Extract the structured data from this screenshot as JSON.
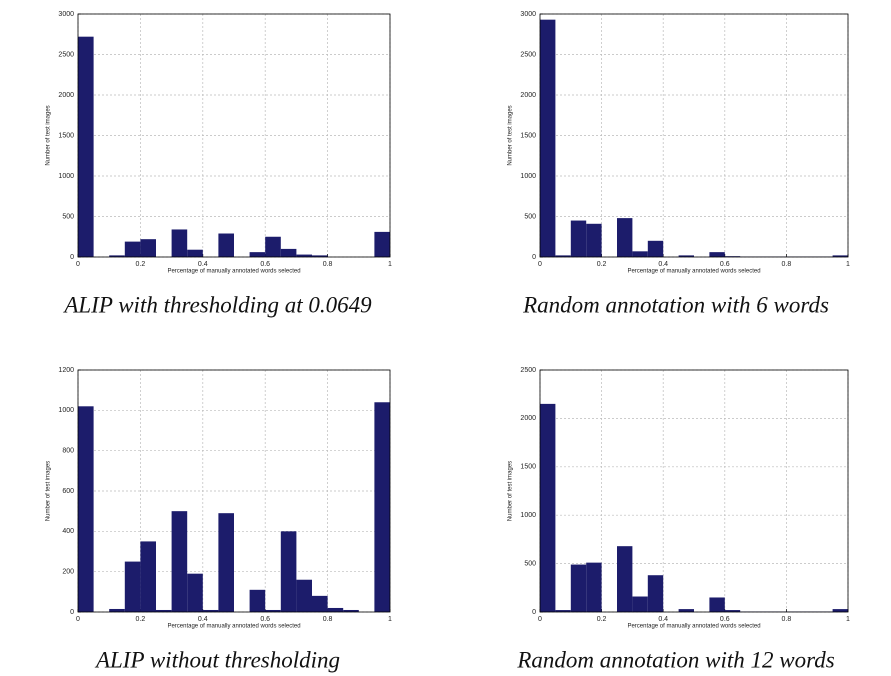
{
  "chart_data": [
    {
      "type": "histogram",
      "title": "ALIP with thresholding at 0.0649",
      "x_label": "Percentage of manually annotated words selected",
      "y_label": "Number of test images",
      "bins": [
        0,
        0.05,
        0.1,
        0.15,
        0.2,
        0.25,
        0.3,
        0.35,
        0.4,
        0.45,
        0.5,
        0.55,
        0.6,
        0.65,
        0.7,
        0.75,
        0.8,
        0.85,
        0.9,
        0.95,
        1
      ],
      "counts": [
        2720,
        0,
        20,
        190,
        220,
        0,
        340,
        90,
        0,
        290,
        0,
        60,
        250,
        100,
        30,
        20,
        0,
        0,
        0,
        310
      ],
      "color": "#1c1c6b",
      "xlim": [
        0,
        1
      ],
      "xticks": [
        0,
        0.2,
        0.4,
        0.6,
        0.8,
        1
      ],
      "ylim": [
        0,
        3000
      ],
      "yticks": [
        0,
        500,
        1000,
        1500,
        2000,
        2500,
        3000
      ],
      "grid": true
    },
    {
      "type": "histogram",
      "title": "Random annotation with 6 words",
      "x_label": "Percentage of manually annotated words selected",
      "y_label": "Number of test images",
      "bins": [
        0,
        0.05,
        0.1,
        0.15,
        0.2,
        0.25,
        0.3,
        0.35,
        0.4,
        0.45,
        0.5,
        0.55,
        0.6,
        0.65,
        0.7,
        0.75,
        0.8,
        0.85,
        0.9,
        0.95,
        1
      ],
      "counts": [
        2930,
        20,
        450,
        410,
        0,
        480,
        70,
        200,
        0,
        20,
        0,
        60,
        10,
        5,
        5,
        5,
        5,
        5,
        5,
        20
      ],
      "color": "#1c1c6b",
      "xlim": [
        0,
        1
      ],
      "xticks": [
        0,
        0.2,
        0.4,
        0.6,
        0.8,
        1
      ],
      "ylim": [
        0,
        3000
      ],
      "yticks": [
        0,
        500,
        1000,
        1500,
        2000,
        2500,
        3000
      ],
      "grid": true
    },
    {
      "type": "histogram",
      "title": "ALIP without thresholding",
      "x_label": "Percentage of manually annotated words selected",
      "y_label": "Number of test images",
      "bins": [
        0,
        0.05,
        0.1,
        0.15,
        0.2,
        0.25,
        0.3,
        0.35,
        0.4,
        0.45,
        0.5,
        0.55,
        0.6,
        0.65,
        0.7,
        0.75,
        0.8,
        0.85,
        0.9,
        0.95,
        1
      ],
      "counts": [
        1020,
        0,
        15,
        250,
        350,
        10,
        500,
        190,
        10,
        490,
        0,
        110,
        10,
        400,
        160,
        80,
        20,
        10,
        0,
        1040
      ],
      "color": "#1c1c6b",
      "xlim": [
        0,
        1
      ],
      "xticks": [
        0,
        0.2,
        0.4,
        0.6,
        0.8,
        1
      ],
      "ylim": [
        0,
        1200
      ],
      "yticks": [
        0,
        200,
        400,
        600,
        800,
        1000,
        1200
      ],
      "grid": true
    },
    {
      "type": "histogram",
      "title": "Random annotation with 12 words",
      "x_label": "Percentage of manually annotated words selected",
      "y_label": "Number of test images",
      "bins": [
        0,
        0.05,
        0.1,
        0.15,
        0.2,
        0.25,
        0.3,
        0.35,
        0.4,
        0.45,
        0.5,
        0.55,
        0.6,
        0.65,
        0.7,
        0.75,
        0.8,
        0.85,
        0.9,
        0.95,
        1
      ],
      "counts": [
        2150,
        20,
        490,
        510,
        0,
        680,
        160,
        380,
        0,
        30,
        0,
        150,
        20,
        5,
        5,
        5,
        5,
        5,
        5,
        30
      ],
      "color": "#1c1c6b",
      "xlim": [
        0,
        1
      ],
      "xticks": [
        0,
        0.2,
        0.4,
        0.6,
        0.8,
        1
      ],
      "ylim": [
        0,
        2500
      ],
      "yticks": [
        0,
        500,
        1000,
        1500,
        2000,
        2500
      ],
      "grid": true
    }
  ]
}
